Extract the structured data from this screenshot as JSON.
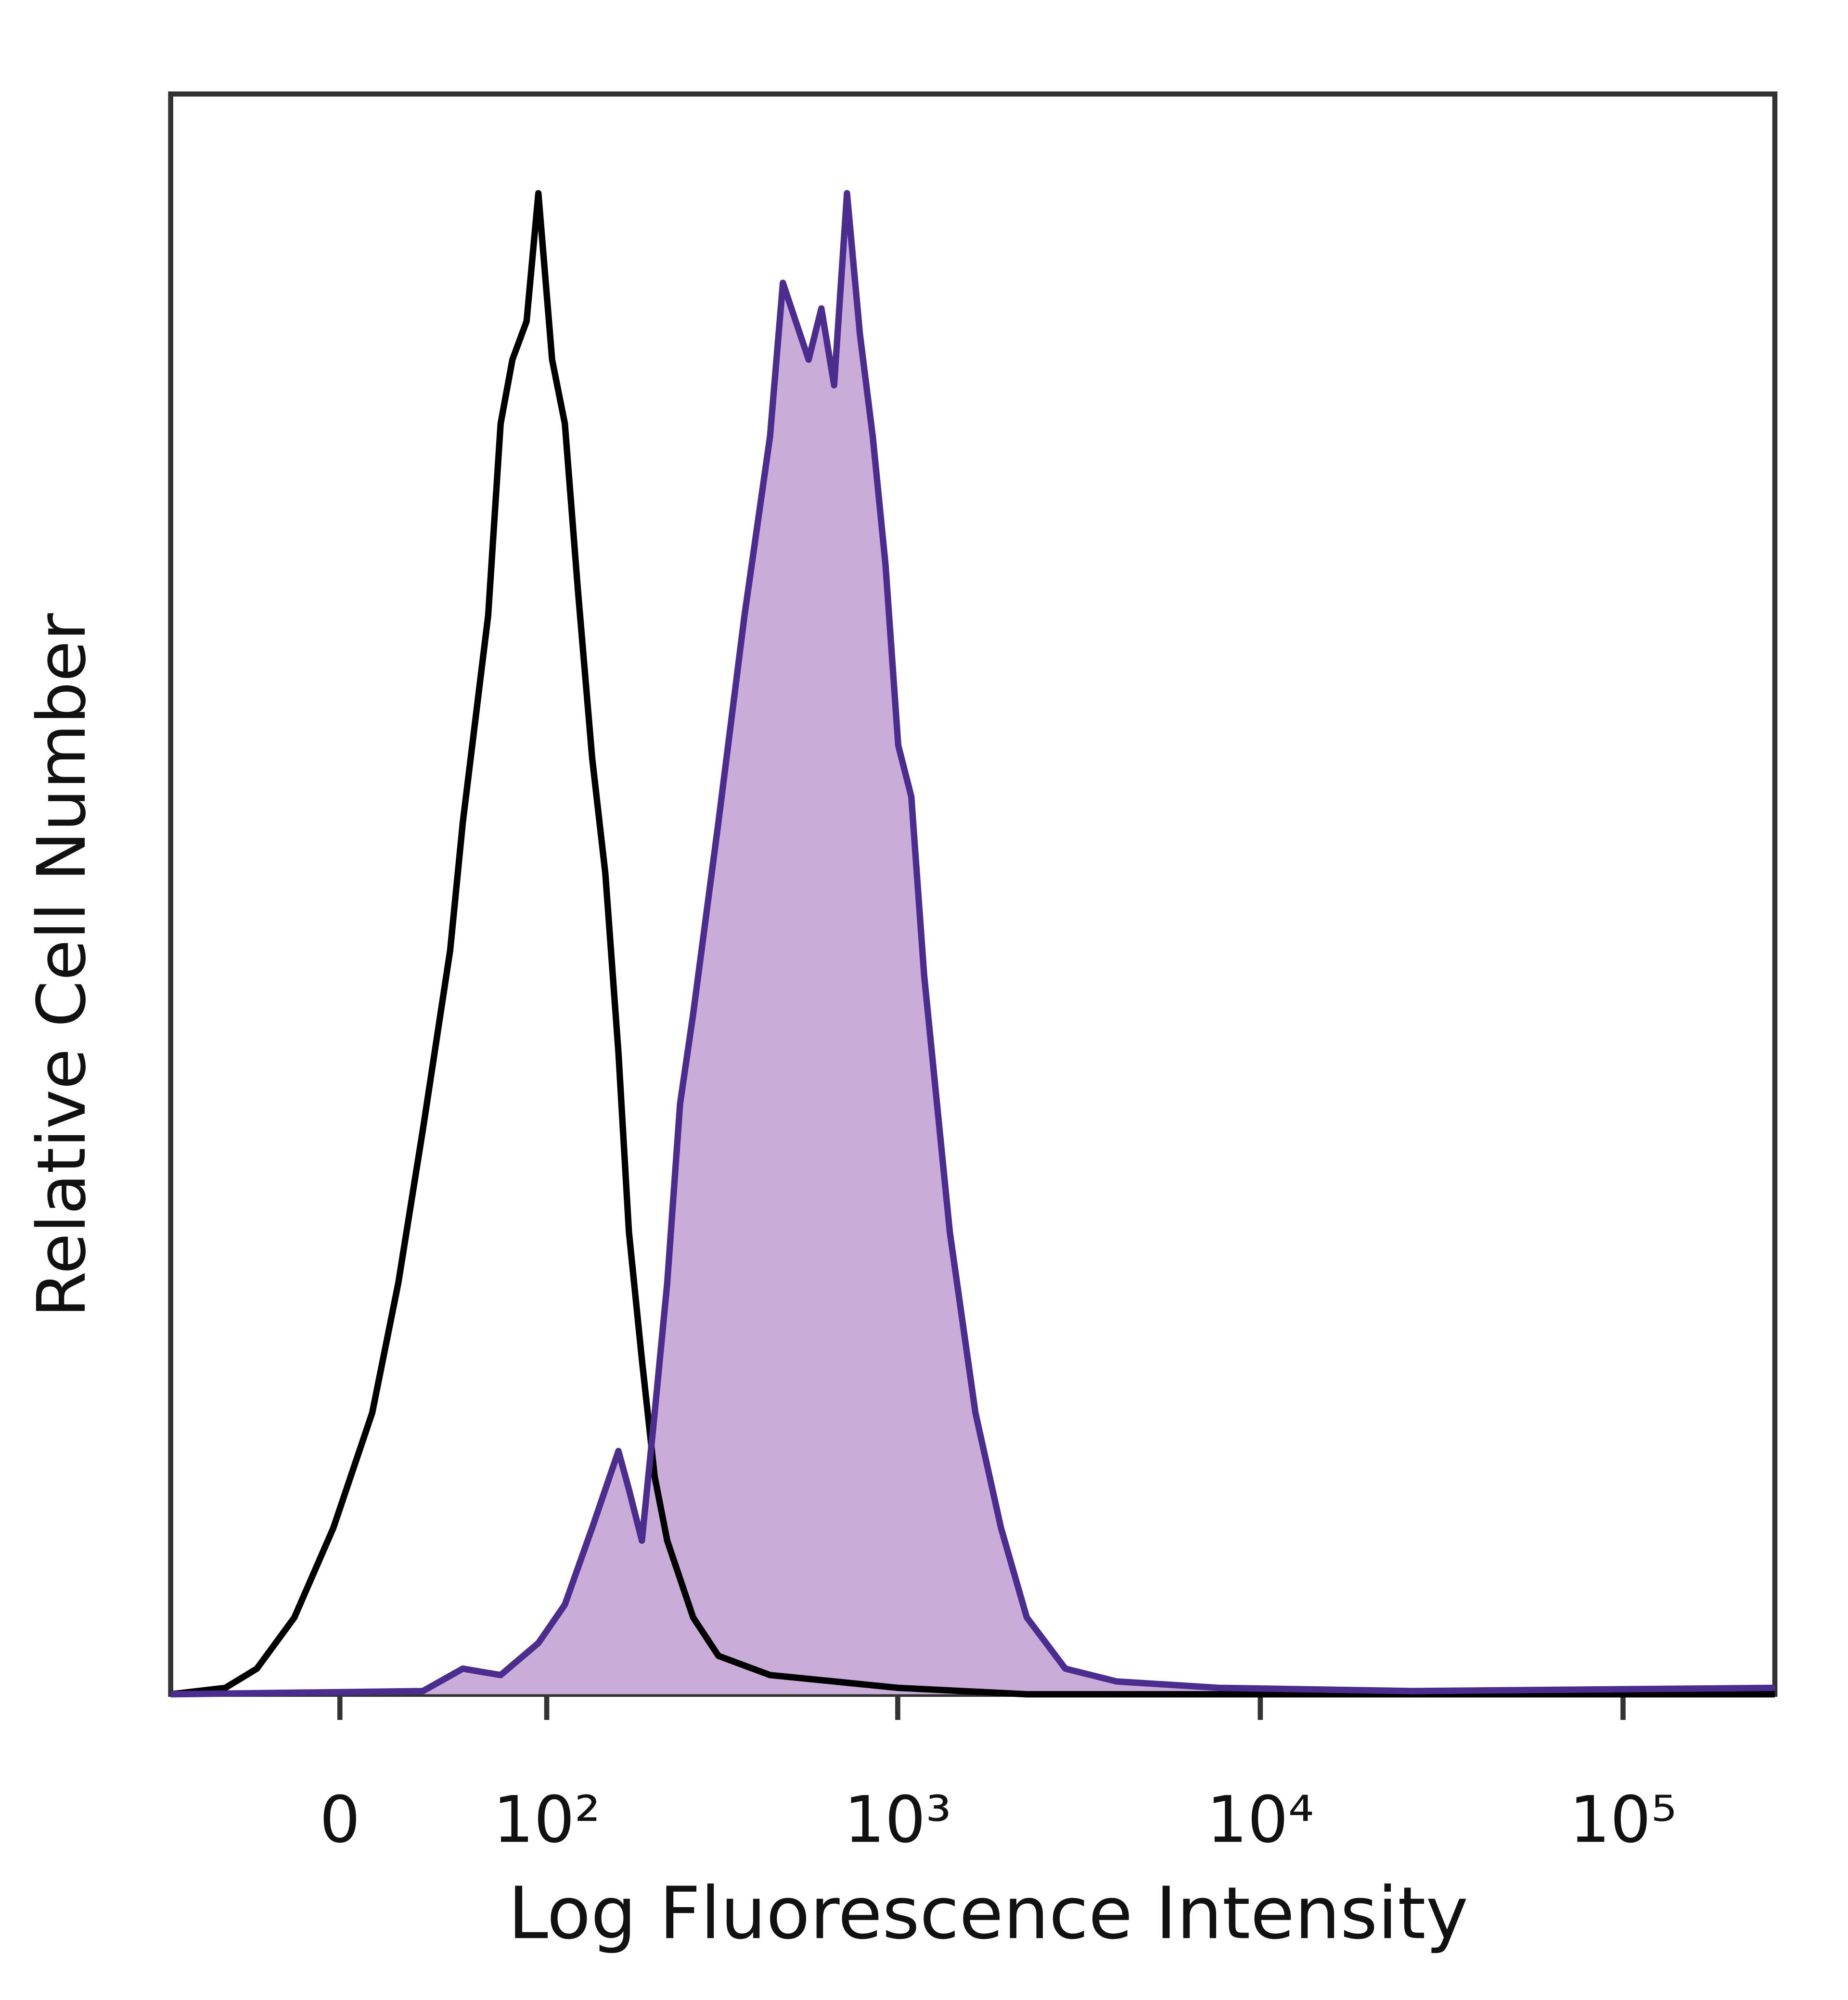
{
  "chart_data": {
    "type": "histogram-overlay",
    "xlabel": "Log Fluorescence Intensity",
    "ylabel": "Relative Cell Number",
    "xscale": "biexponential",
    "xlim": [
      -75,
      262143
    ],
    "ylim": [
      0,
      100
    ],
    "xticks": [
      0,
      {
        "value": 100,
        "label": "10²"
      },
      {
        "value": 1000,
        "label": "10³"
      },
      {
        "value": 10000,
        "label": "10⁴"
      },
      {
        "value": 100000,
        "label": "10⁵"
      }
    ],
    "series": [
      {
        "color": "#000000",
        "x": [
          -75,
          -46,
          -32,
          -17,
          -2.4,
          12,
          22,
          32,
          44,
          50,
          63,
          70,
          77,
          86,
          94,
          104,
          114,
          125,
          138,
          151,
          165,
          177,
          193,
          210,
          228,
          270,
          318,
          443,
          1003,
          2270,
          262143
        ],
        "values": [
          0,
          0.4,
          1.6,
          4.8,
          10.4,
          17.6,
          25.7,
          35.3,
          46.5,
          54.5,
          67.4,
          79.4,
          83.4,
          85.8,
          93.8,
          83.4,
          79.4,
          69.0,
          58.5,
          51.3,
          40.1,
          28.9,
          20.9,
          13.6,
          9.6,
          4.8,
          2.4,
          1.2,
          0.4,
          0,
          0
        ]
      },
      {
        "color": "#4a2d8f",
        "fill": "#c9acd8",
        "x": [
          -75,
          32,
          50,
          70,
          94,
          114,
          138,
          165,
          177,
          193,
          210,
          228,
          248,
          270,
          318,
          376,
          443,
          481,
          522,
          567,
          615,
          667,
          724,
          786,
          853,
          925,
          1003,
          1090,
          1183,
          1392,
          1638,
          1927,
          2270,
          2900,
          4015,
          7710,
          26160,
          262143
        ],
        "values": [
          0,
          0.2,
          1.6,
          1.2,
          3.2,
          5.6,
          10.4,
          15.2,
          12.8,
          9.6,
          17.6,
          25.7,
          36.9,
          42.5,
          54.5,
          67.4,
          78.6,
          88.2,
          85.8,
          83.4,
          86.6,
          81.8,
          93.8,
          85.0,
          78.6,
          70.6,
          59.3,
          56.1,
          44.9,
          28.9,
          17.6,
          10.4,
          4.8,
          1.6,
          0.8,
          0.4,
          0.2,
          0.4
        ]
      }
    ]
  }
}
